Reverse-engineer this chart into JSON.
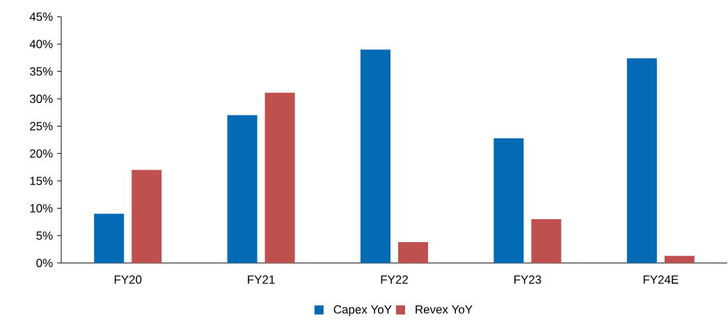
{
  "chart_data": {
    "type": "bar",
    "categories": [
      "FY20",
      "FY21",
      "FY22",
      "FY23",
      "FY24E"
    ],
    "series": [
      {
        "name": "Capex YoY",
        "color": "#036ab5",
        "values": [
          9.0,
          27.0,
          39.0,
          22.8,
          37.4
        ]
      },
      {
        "name": "Revex YoY",
        "color": "#c0504d",
        "values": [
          17.0,
          31.1,
          3.8,
          8.0,
          1.3
        ]
      }
    ],
    "ylim": [
      0,
      45
    ],
    "yticks": [
      {
        "value": 0,
        "label": "0%"
      },
      {
        "value": 5,
        "label": "5%"
      },
      {
        "value": 10,
        "label": "10%"
      },
      {
        "value": 15,
        "label": "15%"
      },
      {
        "value": 20,
        "label": "20%"
      },
      {
        "value": 25,
        "label": "25%"
      },
      {
        "value": 30,
        "label": "30%"
      },
      {
        "value": 35,
        "label": "35%"
      },
      {
        "value": 40,
        "label": "40%"
      },
      {
        "value": 45,
        "label": "45%"
      }
    ],
    "grid": false,
    "legend": "bottom"
  }
}
